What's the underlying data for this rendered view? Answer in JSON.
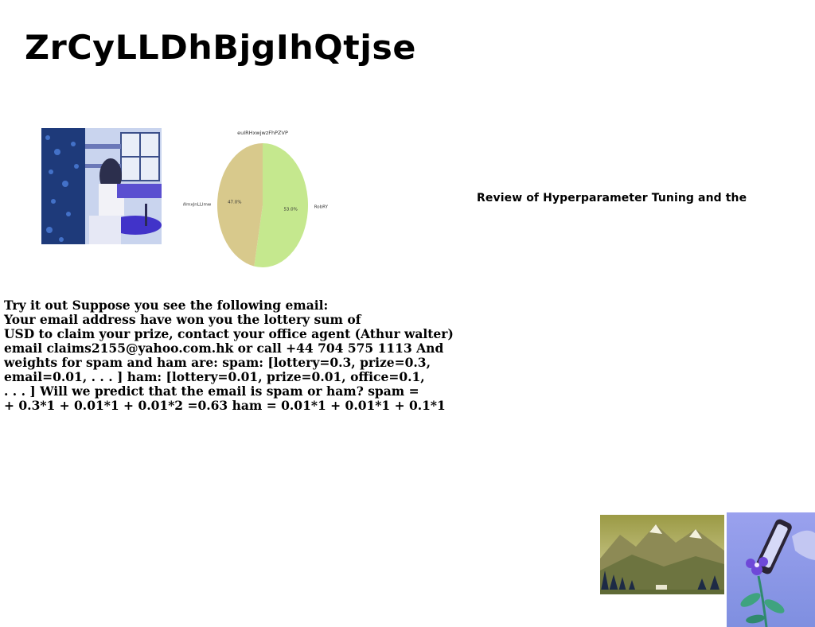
{
  "page": {
    "title": "ZrCyLLDhBjgIhQtjse",
    "review_heading": "Review of Hyperparameter Tuning and the"
  },
  "images": [
    {
      "name": "kitchen-photo",
      "description_icon": "photo-icon"
    },
    {
      "name": "mountain-photo",
      "description_icon": "photo-icon"
    },
    {
      "name": "flower-photo",
      "description_icon": "photo-icon"
    }
  ],
  "body": {
    "lines": [
      "Try it out Suppose you see the following email:",
      "Your email address have won you the lottery sum of",
      "USD to claim your prize, contact your office agent (Athur walter)",
      "email claims2155@yahoo.com.hk or call +44 704 575 1113 And",
      "weights for spam and ham are: spam: [lottery=0.3, prize=0.3,",
      "email=0.01, . . . ] ham: [lottery=0.01, prize=0.01, office=0.1,",
      ". . . ] Will we predict that the email is spam or ham? spam =",
      "+ 0.3*1 + 0.01*1 + 0.01*2 =0.63 ham = 0.01*1 + 0.01*1 + 0.1*1"
    ]
  },
  "chart_data": {
    "type": "pie",
    "title": "euIRHxwjwzFhPZVP",
    "categories": [
      "RobRY",
      "WmxJnLLlmw"
    ],
    "values": [
      53.0,
      47.0
    ],
    "value_labels": [
      "53.0%",
      "47.0%"
    ],
    "colors": [
      "#c5e88e",
      "#d8c98c"
    ],
    "legend": "none"
  }
}
